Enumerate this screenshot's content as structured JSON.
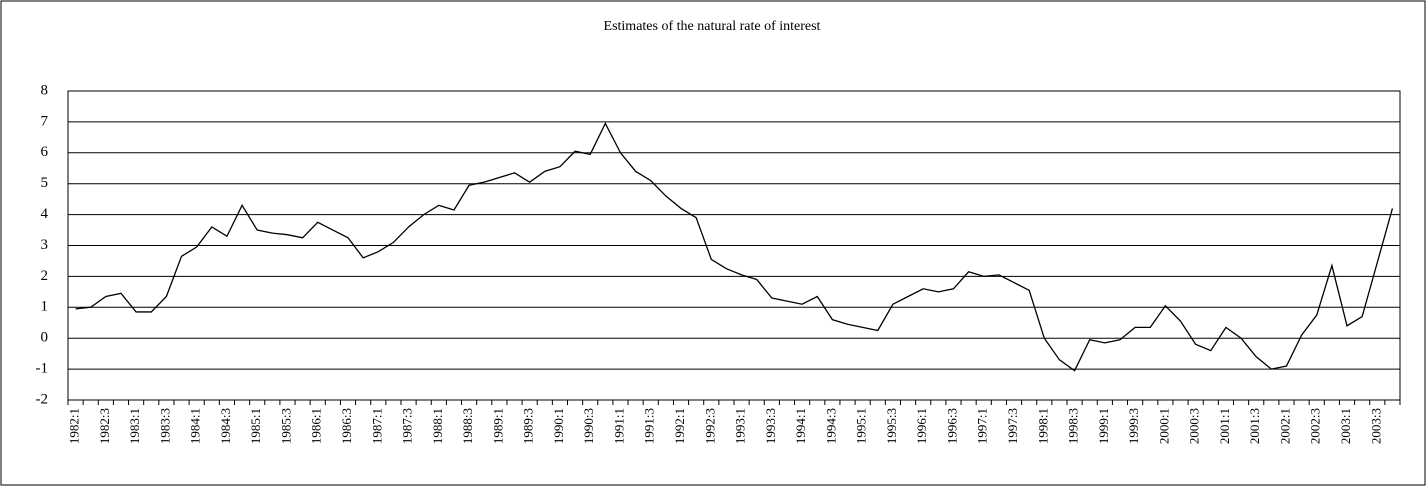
{
  "chart_data": {
    "type": "line",
    "title": "Estimates of the natural rate of interest",
    "categories": [
      "1982:1",
      null,
      "1982:3",
      null,
      "1983:1",
      null,
      "1983:3",
      null,
      "1984:1",
      null,
      "1984:3",
      null,
      "1985:1",
      null,
      "1985:3",
      null,
      "1986:1",
      null,
      "1986:3",
      null,
      "1987:1",
      null,
      "1987:3",
      null,
      "1988:1",
      null,
      "1988:3",
      null,
      "1989:1",
      null,
      "1989:3",
      null,
      "1990:1",
      null,
      "1990:3",
      null,
      "1991:1",
      null,
      "1991:3",
      null,
      "1992:1",
      null,
      "1992:3",
      null,
      "1993:1",
      null,
      "1993:3",
      null,
      "1994:1",
      null,
      "1994:3",
      null,
      "1995:1",
      null,
      "1995:3",
      null,
      "1996:1",
      null,
      "1996:3",
      null,
      "1997:1",
      null,
      "1997:3",
      null,
      "1998:1",
      null,
      "1998:3",
      null,
      "1999:1",
      null,
      "1999:3",
      null,
      "2000:1",
      null,
      "2000:3",
      null,
      "2001:1",
      null,
      "2001:3",
      null,
      "2002:1",
      null,
      "2002:3",
      null,
      "2003:1",
      null,
      "2003:3",
      null
    ],
    "values": [
      0.95,
      1.0,
      1.35,
      1.45,
      0.85,
      0.85,
      1.35,
      2.65,
      2.95,
      3.6,
      3.3,
      4.3,
      3.5,
      3.4,
      3.35,
      3.25,
      3.75,
      3.5,
      3.25,
      2.6,
      2.8,
      3.1,
      3.6,
      4.0,
      4.3,
      4.15,
      4.95,
      5.05,
      5.2,
      5.35,
      5.05,
      5.4,
      5.55,
      6.05,
      5.95,
      6.95,
      6.0,
      5.4,
      5.1,
      4.6,
      4.2,
      3.9,
      2.55,
      2.25,
      2.05,
      1.9,
      1.3,
      1.2,
      1.1,
      1.35,
      0.6,
      0.45,
      0.35,
      0.25,
      1.1,
      1.35,
      1.6,
      1.5,
      1.6,
      2.15,
      2.0,
      2.05,
      1.8,
      1.55,
      0.0,
      -0.7,
      -1.05,
      -0.05,
      -0.15,
      -0.05,
      0.35,
      0.35,
      1.05,
      0.55,
      -0.2,
      -0.4,
      0.35,
      0.0,
      -0.6,
      -1.0,
      -0.9,
      0.1,
      0.75,
      2.35,
      0.4,
      0.7,
      2.45,
      4.2
    ],
    "color": "#000000",
    "ylim": [
      -2,
      8
    ],
    "yticks": [
      -2,
      -1,
      0,
      1,
      2,
      3,
      4,
      5,
      6,
      7,
      8
    ],
    "grid": true
  }
}
